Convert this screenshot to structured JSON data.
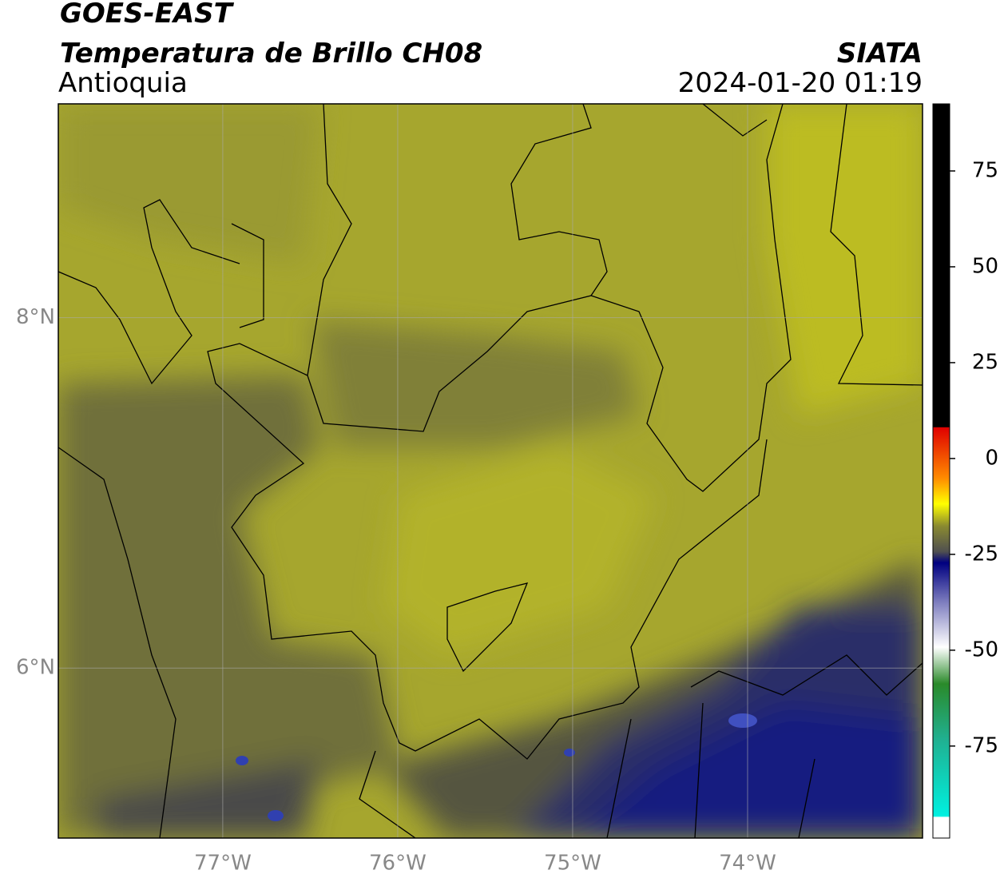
{
  "header": {
    "title": "GOES-EAST",
    "subtitle": "Temperatura de Brillo CH08",
    "region": "Antioquia",
    "source": "SIATA",
    "datetime": "2024-01-20 01:19"
  },
  "map": {
    "lonlim": [
      -77.94,
      -73.0
    ],
    "latlim": [
      5.03,
      9.22
    ],
    "lonticks": [
      {
        "value": -77,
        "label": "77°W"
      },
      {
        "value": -76,
        "label": "76°W"
      },
      {
        "value": -75,
        "label": "75°W"
      },
      {
        "value": -74,
        "label": "74°W"
      }
    ],
    "latticks": [
      {
        "value": 8,
        "label": "8°N"
      },
      {
        "value": 6,
        "label": "6°N"
      }
    ]
  },
  "colorbar": {
    "lim": [
      -99,
      92.5
    ],
    "ticks": [
      75,
      50,
      25,
      0,
      -25,
      -50,
      -75
    ]
  }
}
